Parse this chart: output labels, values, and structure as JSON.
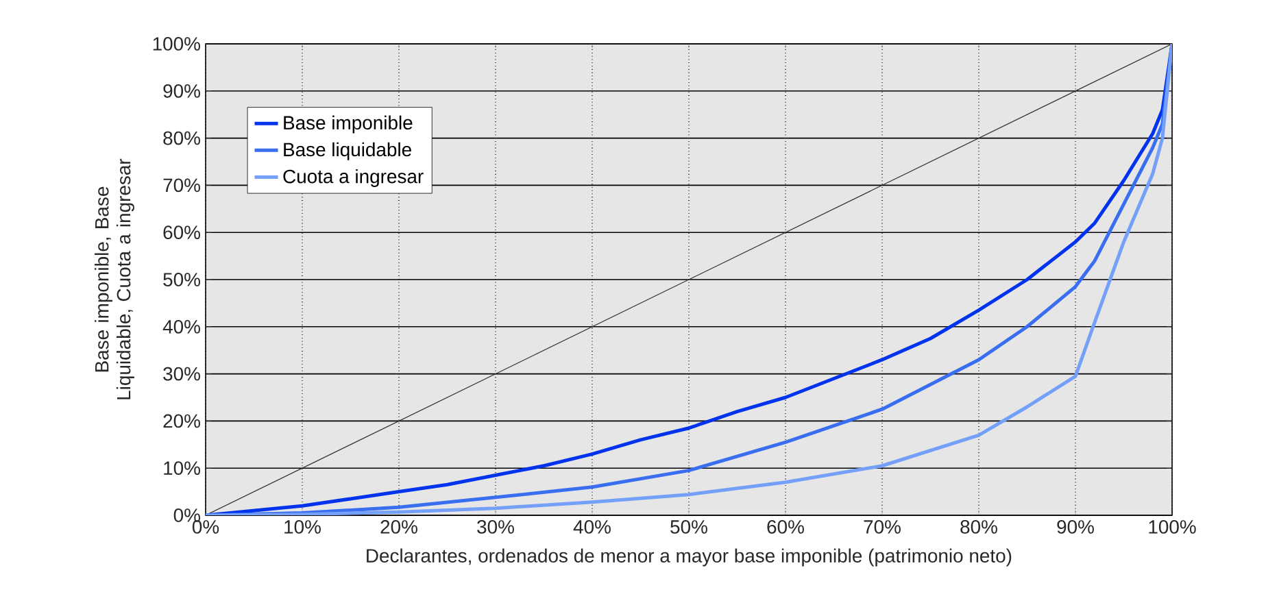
{
  "chart_data": {
    "type": "line",
    "xlabel": "Declarantes, ordenados de menor a mayor base imponible (patrimonio neto)",
    "ylabel": "Base imponible, Base Liquidable, Cuota a ingresar",
    "xlim": [
      0,
      100
    ],
    "ylim": [
      0,
      100
    ],
    "xticks": [
      {
        "value": 0,
        "label": "0%"
      },
      {
        "value": 10,
        "label": "10%"
      },
      {
        "value": 20,
        "label": "20%"
      },
      {
        "value": 30,
        "label": "30%"
      },
      {
        "value": 40,
        "label": "40%"
      },
      {
        "value": 50,
        "label": "50%"
      },
      {
        "value": 60,
        "label": "60%"
      },
      {
        "value": 70,
        "label": "70%"
      },
      {
        "value": 80,
        "label": "80%"
      },
      {
        "value": 90,
        "label": "90%"
      },
      {
        "value": 100,
        "label": "100%"
      }
    ],
    "yticks": [
      {
        "value": 0,
        "label": "0%"
      },
      {
        "value": 10,
        "label": "10%"
      },
      {
        "value": 20,
        "label": "20%"
      },
      {
        "value": 30,
        "label": "30%"
      },
      {
        "value": 40,
        "label": "40%"
      },
      {
        "value": 50,
        "label": "50%"
      },
      {
        "value": 60,
        "label": "60%"
      },
      {
        "value": 70,
        "label": "70%"
      },
      {
        "value": 80,
        "label": "80%"
      },
      {
        "value": 90,
        "label": "90%"
      },
      {
        "value": 100,
        "label": "100%"
      }
    ],
    "grid": true,
    "legend": "top left",
    "marker": "none",
    "line_style": "solid",
    "series": [
      {
        "color": "#333333",
        "x": [
          0,
          100
        ],
        "values": [
          0,
          100
        ]
      },
      {
        "name": "Base imponible",
        "color": "#0033ee",
        "x": [
          0,
          5,
          10,
          15,
          20,
          25,
          30,
          35,
          40,
          45,
          50,
          55,
          60,
          65,
          70,
          75,
          80,
          85,
          90,
          92,
          95,
          98,
          99,
          100
        ],
        "values": [
          0,
          1,
          2,
          3.5,
          5,
          6.5,
          8.5,
          10.5,
          13,
          16,
          18.5,
          22,
          25,
          29,
          33,
          37.5,
          43.5,
          50,
          58,
          62,
          71,
          81,
          86,
          100
        ]
      },
      {
        "name": "Base liquidable",
        "color": "#3a6ef0",
        "x": [
          0,
          10,
          20,
          30,
          40,
          50,
          60,
          70,
          80,
          85,
          90,
          92,
          95,
          98,
          99,
          100
        ],
        "values": [
          0,
          0.5,
          1.7,
          3.8,
          6,
          9.5,
          15.5,
          22.5,
          33,
          40,
          48.5,
          54,
          66,
          78,
          83,
          100
        ]
      },
      {
        "name": "Cuota a ingresar",
        "color": "#74a0fa",
        "x": [
          0,
          10,
          20,
          30,
          40,
          50,
          60,
          70,
          80,
          85,
          90,
          92,
          95,
          98,
          99,
          100
        ],
        "values": [
          0,
          0.2,
          0.7,
          1.5,
          2.8,
          4.4,
          7,
          10.5,
          17,
          23,
          29.5,
          41,
          58,
          72.5,
          80,
          100
        ]
      }
    ]
  }
}
